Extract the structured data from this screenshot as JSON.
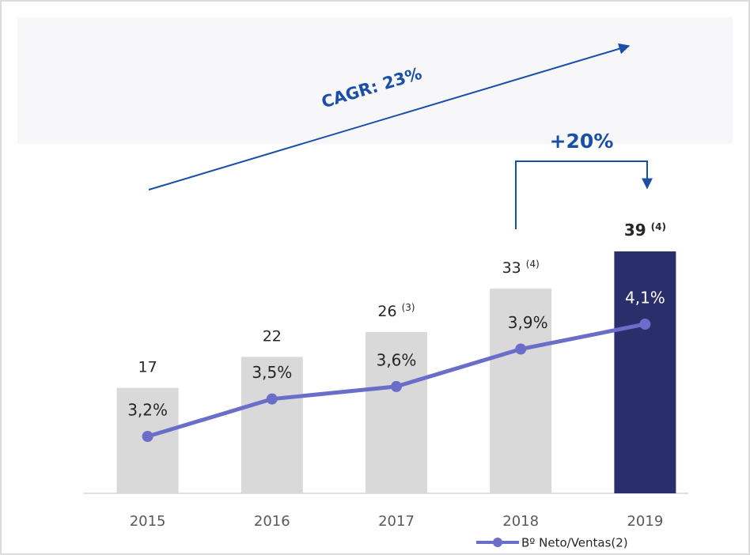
{
  "chart_data": {
    "type": "bar-line",
    "categories": [
      "2015",
      "2016",
      "2017",
      "2018",
      "2019"
    ],
    "series": [
      {
        "name": "Bº Neto",
        "type": "bar",
        "color": "#d9d9d9",
        "highlight_color": "#2a2e6a",
        "values": [
          17,
          22,
          26,
          33,
          39
        ],
        "notes": [
          null,
          null,
          "(3)",
          "(4)",
          "(4)"
        ]
      },
      {
        "name": "Bº Neto/Ventas(2)",
        "type": "line",
        "color": "#6a6ec8",
        "values": [
          3.2,
          3.5,
          3.6,
          3.9,
          4.1
        ],
        "value_labels": [
          "3,2%",
          "3,5%",
          "3,6%",
          "3,9%",
          "4,1%"
        ]
      }
    ],
    "highlight_index": 4,
    "annotations": [
      "CAGR: 23%",
      "+20%"
    ],
    "legend": true
  }
}
